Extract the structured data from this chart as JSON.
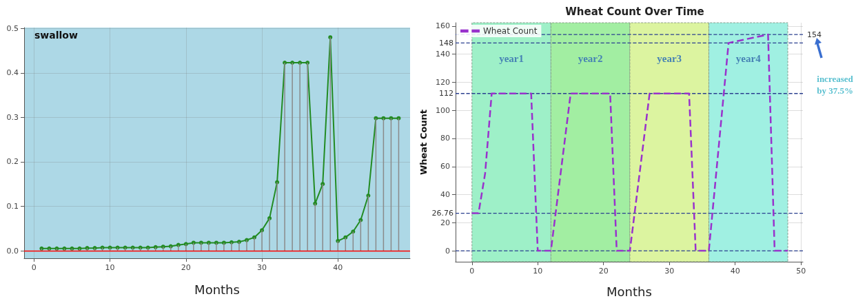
{
  "chart_data": [
    {
      "type": "line",
      "annotations": [
        "swallow"
      ],
      "xlabel": "Months",
      "x": [
        1,
        2,
        3,
        4,
        5,
        6,
        7,
        8,
        9,
        10,
        11,
        12,
        13,
        14,
        15,
        16,
        17,
        18,
        19,
        20,
        21,
        22,
        23,
        24,
        25,
        26,
        27,
        28,
        29,
        30,
        31,
        32,
        33,
        34,
        35,
        36,
        37,
        38,
        39,
        40,
        41,
        42,
        43,
        44,
        45,
        46,
        47,
        48
      ],
      "series": [
        {
          "type": "bar",
          "color": "#8a8a8a",
          "values": [
            0.005,
            0.005,
            0.005,
            0.005,
            0.005,
            0.005,
            0.006,
            0.006,
            0.007,
            0.007,
            0.007,
            0.007,
            0.007,
            0.007,
            0.007,
            0.008,
            0.009,
            0.01,
            0.013,
            0.015,
            0.018,
            0.018,
            0.018,
            0.018,
            0.018,
            0.019,
            0.02,
            0.024,
            0.03,
            0.046,
            0.073,
            0.154,
            0.423,
            0.423,
            0.423,
            0.423,
            0.106,
            0.15,
            0.48,
            0.022,
            0.03,
            0.043,
            0.069,
            0.124,
            0.298,
            0.298,
            0.298,
            0.298
          ]
        },
        {
          "type": "line",
          "color": "#228b22",
          "values": [
            0.005,
            0.005,
            0.005,
            0.005,
            0.005,
            0.005,
            0.006,
            0.006,
            0.007,
            0.007,
            0.007,
            0.007,
            0.007,
            0.007,
            0.007,
            0.008,
            0.009,
            0.01,
            0.013,
            0.015,
            0.018,
            0.018,
            0.018,
            0.018,
            0.018,
            0.019,
            0.02,
            0.024,
            0.03,
            0.046,
            0.073,
            0.154,
            0.423,
            0.423,
            0.423,
            0.423,
            0.106,
            0.15,
            0.48,
            0.022,
            0.03,
            0.043,
            0.069,
            0.124,
            0.298,
            0.298,
            0.298,
            0.298
          ]
        }
      ],
      "xlim": [
        -1.3,
        49.5
      ],
      "xticks": [
        0,
        10,
        20,
        30,
        40
      ],
      "ylim": [
        -0.017,
        0.502
      ],
      "yticks": [
        {
          "value": 0,
          "label": "0.0"
        },
        0.1,
        0.2,
        0.3,
        0.4,
        0.5
      ],
      "ref_lines": [
        {
          "axis": "y",
          "value": 0,
          "color": "#ff0000",
          "line_style": "solid"
        }
      ],
      "grid": true,
      "marker": "circle",
      "line_style": "solid",
      "legend": false
    },
    {
      "type": "line",
      "title": "Wheat Count Over Time",
      "xlabel": "Months",
      "ylabel": "Wheat Count",
      "annotations": [
        "increased by 37.5%"
      ],
      "series": [
        {
          "name": "Wheat Count",
          "color": "#9932cc",
          "x": [
            0,
            1,
            2,
            3,
            9,
            10,
            12,
            15,
            21,
            22,
            24,
            27,
            33,
            34,
            36,
            39,
            45,
            46,
            48
          ],
          "values": [
            26.76,
            26.76,
            55,
            112,
            112,
            0,
            0,
            112,
            112,
            0,
            0,
            112,
            112,
            0,
            0,
            148,
            154,
            0,
            0
          ]
        }
      ],
      "xlim": [
        -2.5,
        50.3
      ],
      "xticks": [
        0,
        10,
        20,
        30,
        40,
        50
      ],
      "ylim": [
        -7.8,
        162.4
      ],
      "yticks": [
        0,
        20,
        40,
        60,
        80,
        100,
        120,
        140,
        160
      ],
      "bands": [
        {
          "axis": "x",
          "from": 0,
          "to": 12,
          "label": "year1",
          "color": "#9ef0c8"
        },
        {
          "axis": "x",
          "from": 12,
          "to": 24,
          "label": "year2",
          "color": "#a2eea2"
        },
        {
          "axis": "x",
          "from": 24,
          "to": 36,
          "label": "year3",
          "color": "#dcf4a0"
        },
        {
          "axis": "x",
          "from": 36,
          "to": 48,
          "label": "year4",
          "color": "#a0f0e2"
        }
      ],
      "ref_lines": [
        {
          "axis": "y",
          "value": 148,
          "label": "148",
          "color": "#2a3f8f",
          "line_style": "dashed"
        },
        {
          "axis": "y",
          "value": 112,
          "label": "112",
          "color": "#2a3f8f",
          "line_style": "dashed"
        },
        {
          "axis": "y",
          "value": 0,
          "color": "#2a3f8f",
          "line_style": "dashed"
        },
        {
          "axis": "y",
          "value": 26.76,
          "label": "26.76",
          "color": "#2a3f8f",
          "line_style": "dashed"
        },
        {
          "axis": "y",
          "value": 154,
          "label": "154",
          "color": "#2a3f8f",
          "line_style": "dashed"
        }
      ],
      "grid": true,
      "legend": "top left",
      "marker": "none",
      "line_style": "dashed"
    }
  ]
}
